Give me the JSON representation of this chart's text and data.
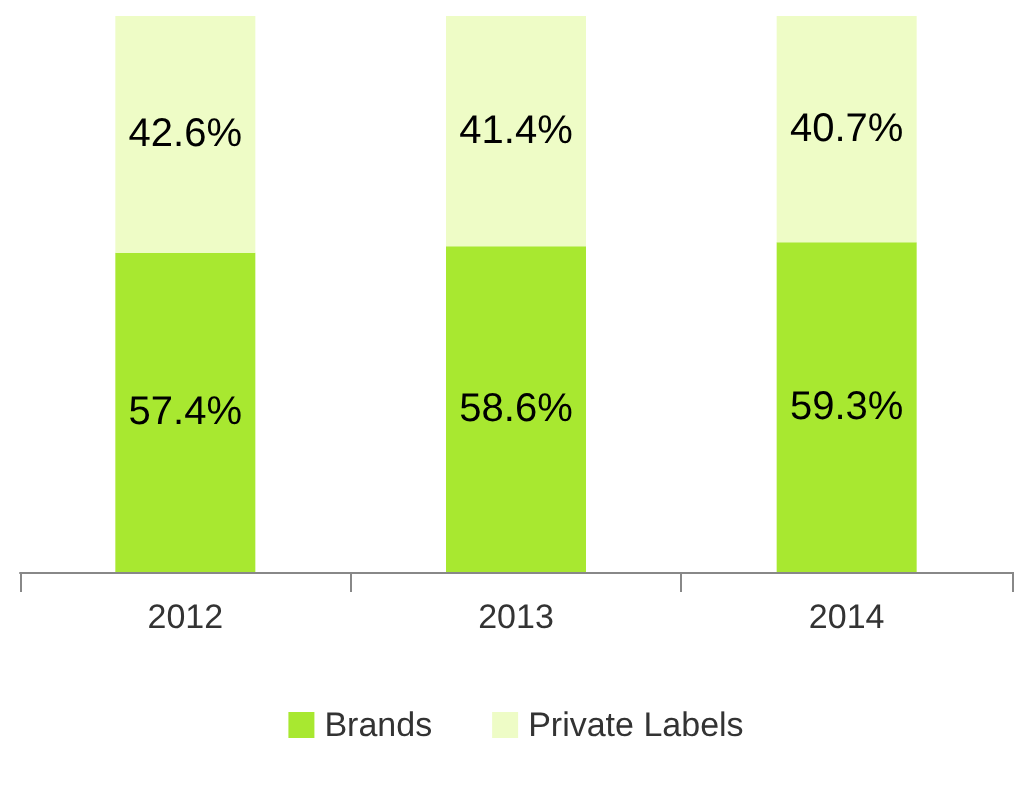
{
  "chart_data": {
    "type": "bar",
    "stacked": true,
    "categories": [
      "2012",
      "2013",
      "2014"
    ],
    "series": [
      {
        "name": "Brands",
        "color": "#a8e830",
        "values": [
          57.4,
          58.6,
          59.3
        ],
        "value_labels": [
          "57.4%",
          "58.6%",
          "59.3%"
        ]
      },
      {
        "name": "Private Labels",
        "color": "#eefcc6",
        "values": [
          42.6,
          41.4,
          40.7
        ],
        "value_labels": [
          "42.6%",
          "41.4%",
          "40.7%"
        ]
      }
    ],
    "ylim": [
      0,
      100
    ],
    "tick_labels": "x",
    "legend": "bottom"
  }
}
